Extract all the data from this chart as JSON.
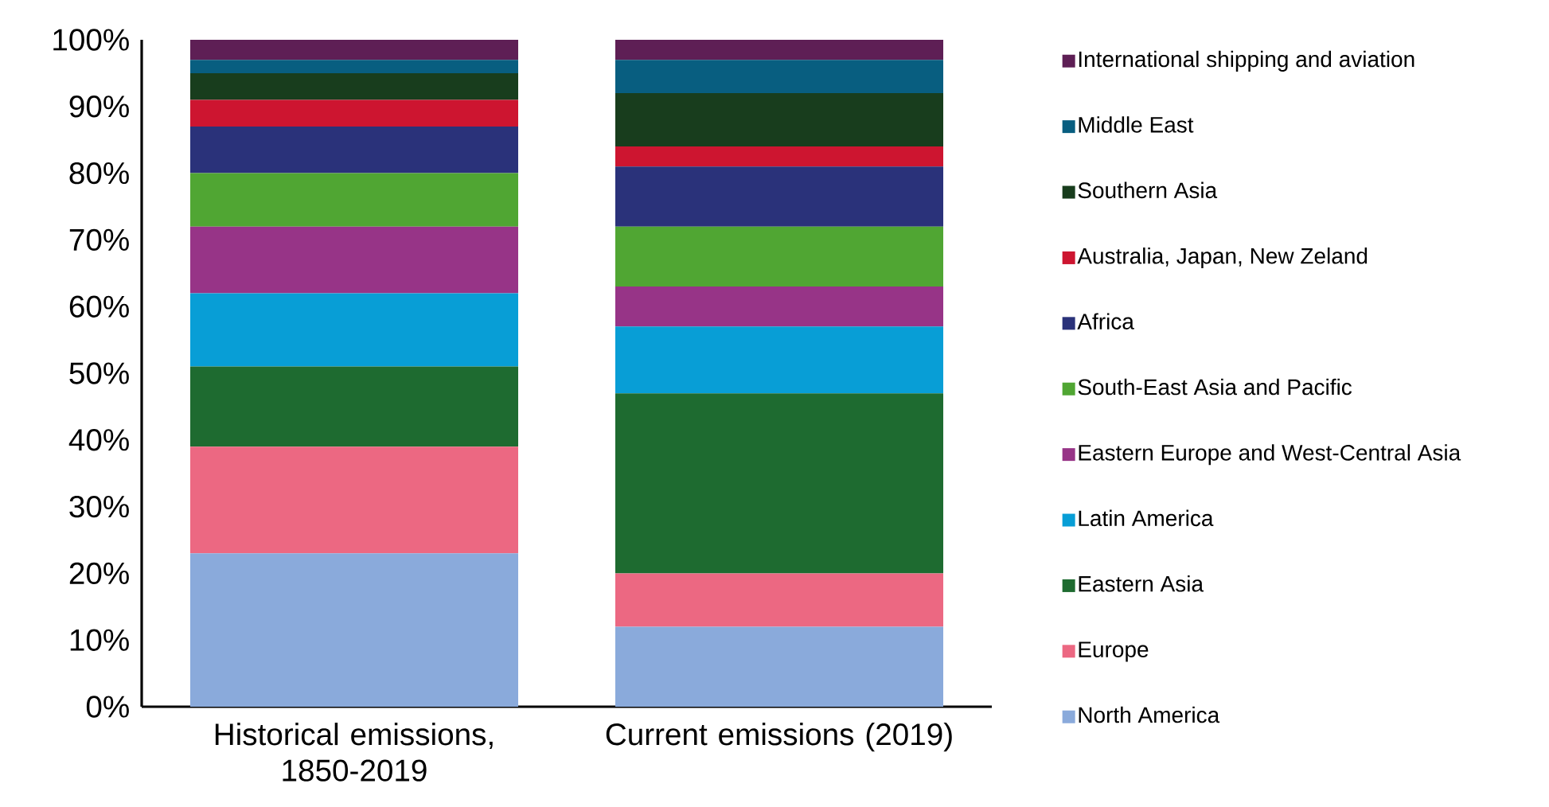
{
  "chart_data": {
    "type": "bar",
    "stacked": true,
    "legend": "right",
    "categories": [
      "Historical emissions, 1850-2019",
      "Current emissions (2019)"
    ],
    "ylim": [
      0,
      100
    ],
    "yticks": [
      {
        "value": 0,
        "label": "0%"
      },
      {
        "value": 10,
        "label": "10%"
      },
      {
        "value": 20,
        "label": "20%"
      },
      {
        "value": 30,
        "label": "30%"
      },
      {
        "value": 40,
        "label": "40%"
      },
      {
        "value": 50,
        "label": "50%"
      },
      {
        "value": 60,
        "label": "60%"
      },
      {
        "value": 70,
        "label": "70%"
      },
      {
        "value": 80,
        "label": "80%"
      },
      {
        "value": 90,
        "label": "90%"
      },
      {
        "value": 100,
        "label": "100%"
      }
    ],
    "series": [
      {
        "name": "North America",
        "color": "#8aaadb",
        "values": [
          23,
          12
        ]
      },
      {
        "name": "Europe",
        "color": "#ec6882",
        "values": [
          16,
          8
        ]
      },
      {
        "name": "Eastern Asia",
        "color": "#1e6b30",
        "values": [
          12,
          27
        ]
      },
      {
        "name": "Latin America",
        "color": "#089ed6",
        "values": [
          11,
          10
        ]
      },
      {
        "name": "Eastern Europe and West-Central Asia",
        "color": "#973487",
        "values": [
          10,
          6
        ]
      },
      {
        "name": "South-East Asia and Pacific",
        "color": "#50a633",
        "values": [
          8,
          9
        ]
      },
      {
        "name": "Africa",
        "color": "#2a327a",
        "values": [
          7,
          9
        ]
      },
      {
        "name": "Australia, Japan, New Zeland",
        "color": "#cd1530",
        "values": [
          4,
          3
        ]
      },
      {
        "name": "Southern Asia",
        "color": "#183d1d",
        "values": [
          4,
          8
        ]
      },
      {
        "name": "Middle East",
        "color": "#085e80",
        "values": [
          2,
          5
        ]
      },
      {
        "name": "International shipping and aviation",
        "color": "#5e1f55",
        "values": [
          3,
          3
        ]
      }
    ]
  }
}
